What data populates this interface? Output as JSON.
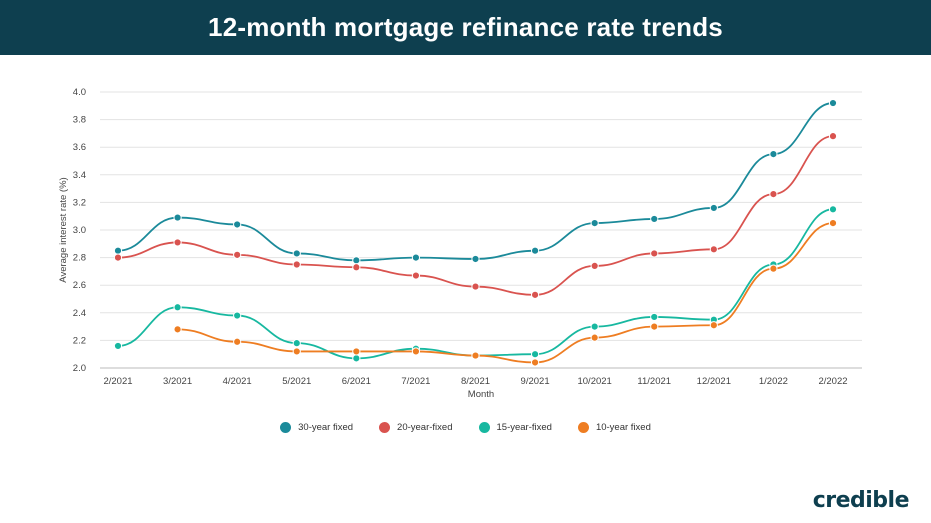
{
  "header": {
    "title": "12-month mortgage refinance rate trends"
  },
  "brand": {
    "name": "credible"
  },
  "chart_data": {
    "type": "line",
    "title": "12-month mortgage refinance rate trends",
    "xlabel": "Month",
    "ylabel": "Average interest rate (%)",
    "ylim": [
      2.0,
      4.0
    ],
    "yticks": [
      "2.0",
      "2.2",
      "2.4",
      "2.6",
      "2.8",
      "3.0",
      "3.2",
      "3.4",
      "3.6",
      "3.8",
      "4.0"
    ],
    "grid": true,
    "legend_position": "bottom",
    "categories": [
      "2/2021",
      "3/2021",
      "4/2021",
      "5/2021",
      "6/2021",
      "7/2021",
      "8/2021",
      "9/2021",
      "10/2021",
      "11/2021",
      "12/2021",
      "1/2022",
      "2/2022"
    ],
    "series": [
      {
        "name": "30-year fixed",
        "color": "#1b8a9a",
        "values": [
          2.85,
          3.09,
          3.04,
          2.83,
          2.78,
          2.8,
          2.79,
          2.85,
          3.05,
          3.08,
          3.16,
          3.55,
          3.92
        ]
      },
      {
        "name": "20-year-fixed",
        "color": "#d9534f",
        "values": [
          2.8,
          2.91,
          2.82,
          2.75,
          2.73,
          2.67,
          2.59,
          2.53,
          2.74,
          2.83,
          2.86,
          3.26,
          3.68
        ]
      },
      {
        "name": "15-year-fixed",
        "color": "#17b8a0",
        "values": [
          2.16,
          2.44,
          2.38,
          2.18,
          2.07,
          2.14,
          2.09,
          2.1,
          2.3,
          2.37,
          2.35,
          2.75,
          3.15
        ]
      },
      {
        "name": "10-year fixed",
        "color": "#ee7d22",
        "values": [
          null,
          2.28,
          2.19,
          2.12,
          2.12,
          2.12,
          2.09,
          2.04,
          2.22,
          2.3,
          2.31,
          2.72,
          3.05
        ]
      }
    ]
  }
}
